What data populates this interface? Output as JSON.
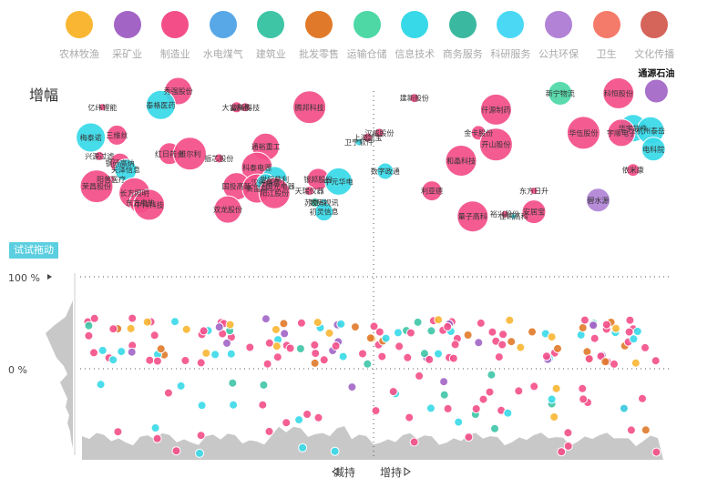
{
  "legend": [
    {
      "label": "农林牧渔",
      "color": "#f8b632"
    },
    {
      "label": "采矿业",
      "color": "#a265c6"
    },
    {
      "label": "制造业",
      "color": "#f34e88"
    },
    {
      "label": "水电煤气",
      "color": "#58a8e8"
    },
    {
      "label": "建筑业",
      "color": "#3ec5a6"
    },
    {
      "label": "批发零售",
      "color": "#e07a2a"
    },
    {
      "label": "运输仓储",
      "color": "#4dd8a6"
    },
    {
      "label": "信息技术",
      "color": "#37d9e8"
    },
    {
      "label": "商务服务",
      "color": "#3bb8a0"
    },
    {
      "label": "科研服务",
      "color": "#4ad8f5"
    },
    {
      "label": "公共环保",
      "color": "#b182d6"
    },
    {
      "label": "卫生",
      "color": "#f47a6a"
    },
    {
      "label": "文化传播",
      "color": "#d5645a"
    }
  ],
  "axis": {
    "y_title": "增幅",
    "tick_100": "100 %",
    "tick_0": "0 %",
    "drag_hint": "试试拖动",
    "decrease_label": "减持",
    "increase_label": "增持"
  },
  "chart_data": {
    "type": "scatter",
    "title": "",
    "xlabel": "减持 / 增持",
    "ylabel": "增幅",
    "x_range": [
      -100,
      100
    ],
    "y_break_ticks": [
      "0 %",
      "100 %"
    ],
    "note": "Bubble chart: x = net reduce/increase of holdings (left = 减持, right = 增持), y = increase percentage; area above 100% is a compressed scale. Colors = industry. Values estimated.",
    "labeled_points": [
      {
        "name": "通源石油",
        "industry": "采矿业",
        "x": 97,
        "y": 900,
        "r": 13,
        "highlight": true
      },
      {
        "name": "新宁物流",
        "industry": "运输仓储",
        "x": 64,
        "y": 890,
        "r": 13
      },
      {
        "name": "科恒股份",
        "industry": "制造业",
        "x": 84,
        "y": 890,
        "r": 17
      },
      {
        "name": "建新股份",
        "industry": "制造业",
        "x": 14,
        "y": 870,
        "r": 5
      },
      {
        "name": "仟源制药",
        "industry": "制造业",
        "x": 42,
        "y": 820,
        "r": 17
      },
      {
        "name": "华伍股份",
        "industry": "制造业",
        "x": 72,
        "y": 720,
        "r": 18
      },
      {
        "name": "华宇软件",
        "industry": "信息技术",
        "x": 89,
        "y": 740,
        "r": 15
      },
      {
        "name": "宇顺电子",
        "industry": "制造业",
        "x": 85,
        "y": 720,
        "r": 15
      },
      {
        "name": "杭州泰岳",
        "industry": "信息技术",
        "x": 95,
        "y": 730,
        "r": 15
      },
      {
        "name": "电科院",
        "industry": "信息技术",
        "x": 96,
        "y": 650,
        "r": 13
      },
      {
        "name": "依米康",
        "industry": "制造业",
        "x": 89,
        "y": 560,
        "r": 7
      },
      {
        "name": "金卡股份",
        "industry": "制造业",
        "x": 36,
        "y": 720,
        "r": 8
      },
      {
        "name": "开山股份",
        "industry": "制造业",
        "x": 42,
        "y": 670,
        "r": 18
      },
      {
        "name": "和晶科技",
        "industry": "制造业",
        "x": 30,
        "y": 600,
        "r": 17
      },
      {
        "name": "汉威股份",
        "industry": "制造业",
        "x": 2,
        "y": 720,
        "r": 5
      },
      {
        "name": "上海凯宝",
        "industry": "制造业",
        "x": -2,
        "y": 700,
        "r": 5
      },
      {
        "name": "卫宁软件",
        "industry": "信息技术",
        "x": -5,
        "y": 680,
        "r": 4
      },
      {
        "name": "数字政通",
        "industry": "信息技术",
        "x": 4,
        "y": 555,
        "r": 9
      },
      {
        "name": "东方日升",
        "industry": "制造业",
        "x": 55,
        "y": 470,
        "r": 4
      },
      {
        "name": "碧水源",
        "industry": "公共环保",
        "x": 77,
        "y": 430,
        "r": 13
      },
      {
        "name": "安居宝",
        "industry": "制造业",
        "x": 55,
        "y": 380,
        "r": 13
      },
      {
        "name": "量子高科",
        "industry": "制造业",
        "x": 34,
        "y": 360,
        "r": 17
      },
      {
        "name": "裕兴股份",
        "industry": "制造业",
        "x": 45,
        "y": 370,
        "r": 4
      },
      {
        "name": "佳讯高科",
        "industry": "信息技术",
        "x": 48,
        "y": 360,
        "r": 3
      },
      {
        "name": "利亚德",
        "industry": "制造业",
        "x": 20,
        "y": 470,
        "r": 11
      },
      {
        "name": "秀强股份",
        "industry": "制造业",
        "x": -67,
        "y": 900,
        "r": 15
      },
      {
        "name": "泰格医药",
        "industry": "信息技术",
        "x": -73,
        "y": 840,
        "r": 16
      },
      {
        "name": "大富科技",
        "industry": "制造业",
        "x": -47,
        "y": 830,
        "r": 6
      },
      {
        "name": "高新科技",
        "industry": "制造业",
        "x": -44,
        "y": 830,
        "r": 5
      },
      {
        "name": "腾邦科技",
        "industry": "制造业",
        "x": -22,
        "y": 830,
        "r": 18
      },
      {
        "name": "亿纬锂能",
        "industry": "制造业",
        "x": -93,
        "y": 830,
        "r": 4
      },
      {
        "name": "梅泰诺",
        "industry": "信息技术",
        "x": -97,
        "y": 700,
        "r": 16
      },
      {
        "name": "三维丝",
        "industry": "制造业",
        "x": -88,
        "y": 710,
        "r": 11
      },
      {
        "name": "通裕重工",
        "industry": "制造业",
        "x": -37,
        "y": 660,
        "r": 15
      },
      {
        "name": "红日药业",
        "industry": "制造业",
        "x": -70,
        "y": 630,
        "r": 12
      },
      {
        "name": "维尔利",
        "industry": "制造业",
        "x": -63,
        "y": 630,
        "r": 18
      },
      {
        "name": "振芯股份",
        "industry": "制造业",
        "x": -53,
        "y": 610,
        "r": 5
      },
      {
        "name": "科泰电源",
        "industry": "制造业",
        "x": -40,
        "y": 570,
        "r": 17
      },
      {
        "name": "兴源过滤",
        "industry": "制造业",
        "x": -94,
        "y": 620,
        "r": 5
      },
      {
        "name": "阳普医疗",
        "industry": "制造业",
        "x": -90,
        "y": 520,
        "r": 4
      },
      {
        "name": "钢研高纳",
        "industry": "制造业",
        "x": -87,
        "y": 590,
        "r": 11
      },
      {
        "name": "天泽信息",
        "industry": "信息技术",
        "x": -85,
        "y": 560,
        "r": 12
      },
      {
        "name": "银邦股份",
        "industry": "制造业",
        "x": -19,
        "y": 520,
        "r": 12
      },
      {
        "name": "中元华电",
        "industry": "信息技术",
        "x": -12,
        "y": 510,
        "r": 15
      },
      {
        "name": "天瑞仪器",
        "industry": "制造业",
        "x": -22,
        "y": 470,
        "r": 5
      },
      {
        "name": "国投高新",
        "industry": "制造业",
        "x": -47,
        "y": 490,
        "r": 15
      },
      {
        "name": "世纪鼎利",
        "industry": "信息技术",
        "x": -34,
        "y": 520,
        "r": 14
      },
      {
        "name": "新宙邦",
        "industry": "制造业",
        "x": -40,
        "y": 480,
        "r": 16
      },
      {
        "name": "国光电器",
        "industry": "制造业",
        "x": -32,
        "y": 490,
        "r": 7
      },
      {
        "name": "汉得信息",
        "industry": "信息技术",
        "x": -37,
        "y": 505,
        "r": 10
      },
      {
        "name": "阳江股份",
        "industry": "制造业",
        "x": -34,
        "y": 460,
        "r": 17
      },
      {
        "name": "苏交科",
        "industry": "建筑业",
        "x": -20,
        "y": 420,
        "r": 5
      },
      {
        "name": "数码视讯",
        "industry": "信息技术",
        "x": -17,
        "y": 420,
        "r": 4
      },
      {
        "name": "双龙股份",
        "industry": "制造业",
        "x": -50,
        "y": 390,
        "r": 15
      },
      {
        "name": "初灵信息",
        "industry": "信息技术",
        "x": -17,
        "y": 380,
        "r": 10
      },
      {
        "name": "长方照明",
        "industry": "制造业",
        "x": -82,
        "y": 460,
        "r": 17
      },
      {
        "name": "东方电热",
        "industry": "制造业",
        "x": -80,
        "y": 420,
        "r": 12
      },
      {
        "name": "中科科技",
        "industry": "制造业",
        "x": -77,
        "y": 410,
        "r": 17
      },
      {
        "name": "荣昌股份",
        "industry": "制造业",
        "x": -95,
        "y": 490,
        "r": 18
      }
    ],
    "unlabeled_points_above_100": 2,
    "points_between_0_and_100": 150,
    "points_below_0": 60
  }
}
